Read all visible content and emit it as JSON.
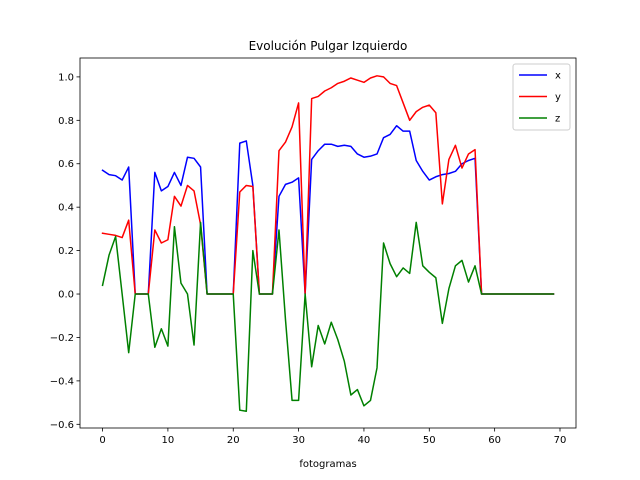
{
  "chart_data": {
    "type": "line",
    "title": "Evolución Pulgar Izquierdo",
    "xlabel": "fotogramas",
    "ylabel": "",
    "xlim": [
      -3.45,
      72.45
    ],
    "ylim": [
      -0.617,
      1.087
    ],
    "xticks": [
      0,
      10,
      20,
      30,
      40,
      50,
      60,
      70
    ],
    "yticks": [
      -0.6,
      -0.4,
      -0.2,
      0.0,
      0.2,
      0.4,
      0.6,
      0.8,
      1.0
    ],
    "xtick_labels": [
      "0",
      "10",
      "20",
      "30",
      "40",
      "50",
      "60",
      "70"
    ],
    "ytick_labels": [
      "−0.6",
      "−0.4",
      "−0.2",
      "0.0",
      "0.2",
      "0.4",
      "0.6",
      "0.8",
      "1.0"
    ],
    "grid": false,
    "legend_position": "top-right",
    "x": [
      0,
      1,
      2,
      3,
      4,
      5,
      6,
      7,
      8,
      9,
      10,
      11,
      12,
      13,
      14,
      15,
      16,
      17,
      18,
      19,
      20,
      21,
      22,
      23,
      24,
      25,
      26,
      27,
      28,
      29,
      30,
      31,
      32,
      33,
      34,
      35,
      36,
      37,
      38,
      39,
      40,
      41,
      42,
      43,
      44,
      45,
      46,
      47,
      48,
      49,
      50,
      51,
      52,
      53,
      54,
      55,
      56,
      57,
      58,
      59,
      60,
      61,
      62,
      63,
      64,
      65,
      66,
      67,
      68,
      69
    ],
    "series": [
      {
        "name": "x",
        "color": "#0000ff",
        "values": [
          0.57,
          0.55,
          0.545,
          0.525,
          0.585,
          0.0,
          0.0,
          0.0,
          0.56,
          0.475,
          0.495,
          0.56,
          0.5,
          0.63,
          0.625,
          0.585,
          0.0,
          0.0,
          0.0,
          0.0,
          0.0,
          0.695,
          0.705,
          0.5,
          0.0,
          0.0,
          0.0,
          0.45,
          0.505,
          0.515,
          0.535,
          0.0,
          0.62,
          0.66,
          0.69,
          0.69,
          0.68,
          0.685,
          0.68,
          0.645,
          0.63,
          0.635,
          0.645,
          0.72,
          0.735,
          0.775,
          0.75,
          0.75,
          0.615,
          0.565,
          0.525,
          0.54,
          0.55,
          0.555,
          0.565,
          0.6,
          0.615,
          0.625,
          0.0,
          0.0,
          0.0,
          0.0,
          0.0,
          0.0,
          0.0,
          0.0,
          0.0,
          0.0,
          0.0,
          0.0
        ]
      },
      {
        "name": "y",
        "color": "#ff0000",
        "values": [
          0.28,
          0.275,
          0.27,
          0.26,
          0.34,
          0.0,
          0.0,
          0.0,
          0.295,
          0.235,
          0.25,
          0.45,
          0.405,
          0.5,
          0.475,
          0.32,
          0.0,
          0.0,
          0.0,
          0.0,
          0.0,
          0.47,
          0.5,
          0.495,
          0.0,
          0.0,
          0.0,
          0.66,
          0.7,
          0.77,
          0.88,
          0.0,
          0.9,
          0.91,
          0.935,
          0.95,
          0.97,
          0.98,
          0.995,
          0.985,
          0.975,
          0.995,
          1.005,
          1.0,
          0.97,
          0.96,
          0.88,
          0.8,
          0.84,
          0.86,
          0.87,
          0.835,
          0.415,
          0.62,
          0.685,
          0.58,
          0.645,
          0.665,
          0.0,
          0.0,
          0.0,
          0.0,
          0.0,
          0.0,
          0.0,
          0.0,
          0.0,
          0.0,
          0.0,
          0.0
        ]
      },
      {
        "name": "z",
        "color": "#008000",
        "values": [
          0.04,
          0.18,
          0.265,
          0.0,
          -0.27,
          0.0,
          0.0,
          0.0,
          -0.245,
          -0.16,
          -0.24,
          0.31,
          0.05,
          0.0,
          -0.235,
          0.33,
          0.0,
          0.0,
          0.0,
          0.0,
          0.0,
          -0.535,
          -0.54,
          0.2,
          0.0,
          0.0,
          0.0,
          0.295,
          -0.12,
          -0.49,
          -0.49,
          0.0,
          -0.335,
          -0.145,
          -0.23,
          -0.13,
          -0.21,
          -0.31,
          -0.465,
          -0.44,
          -0.515,
          -0.49,
          -0.34,
          0.235,
          0.14,
          0.08,
          0.12,
          0.095,
          0.33,
          0.13,
          0.1,
          0.075,
          -0.135,
          0.025,
          0.13,
          0.155,
          0.055,
          0.13,
          0.0,
          0.0,
          0.0,
          0.0,
          0.0,
          0.0,
          0.0,
          0.0,
          0.0,
          0.0,
          0.0,
          0.0
        ]
      }
    ]
  }
}
